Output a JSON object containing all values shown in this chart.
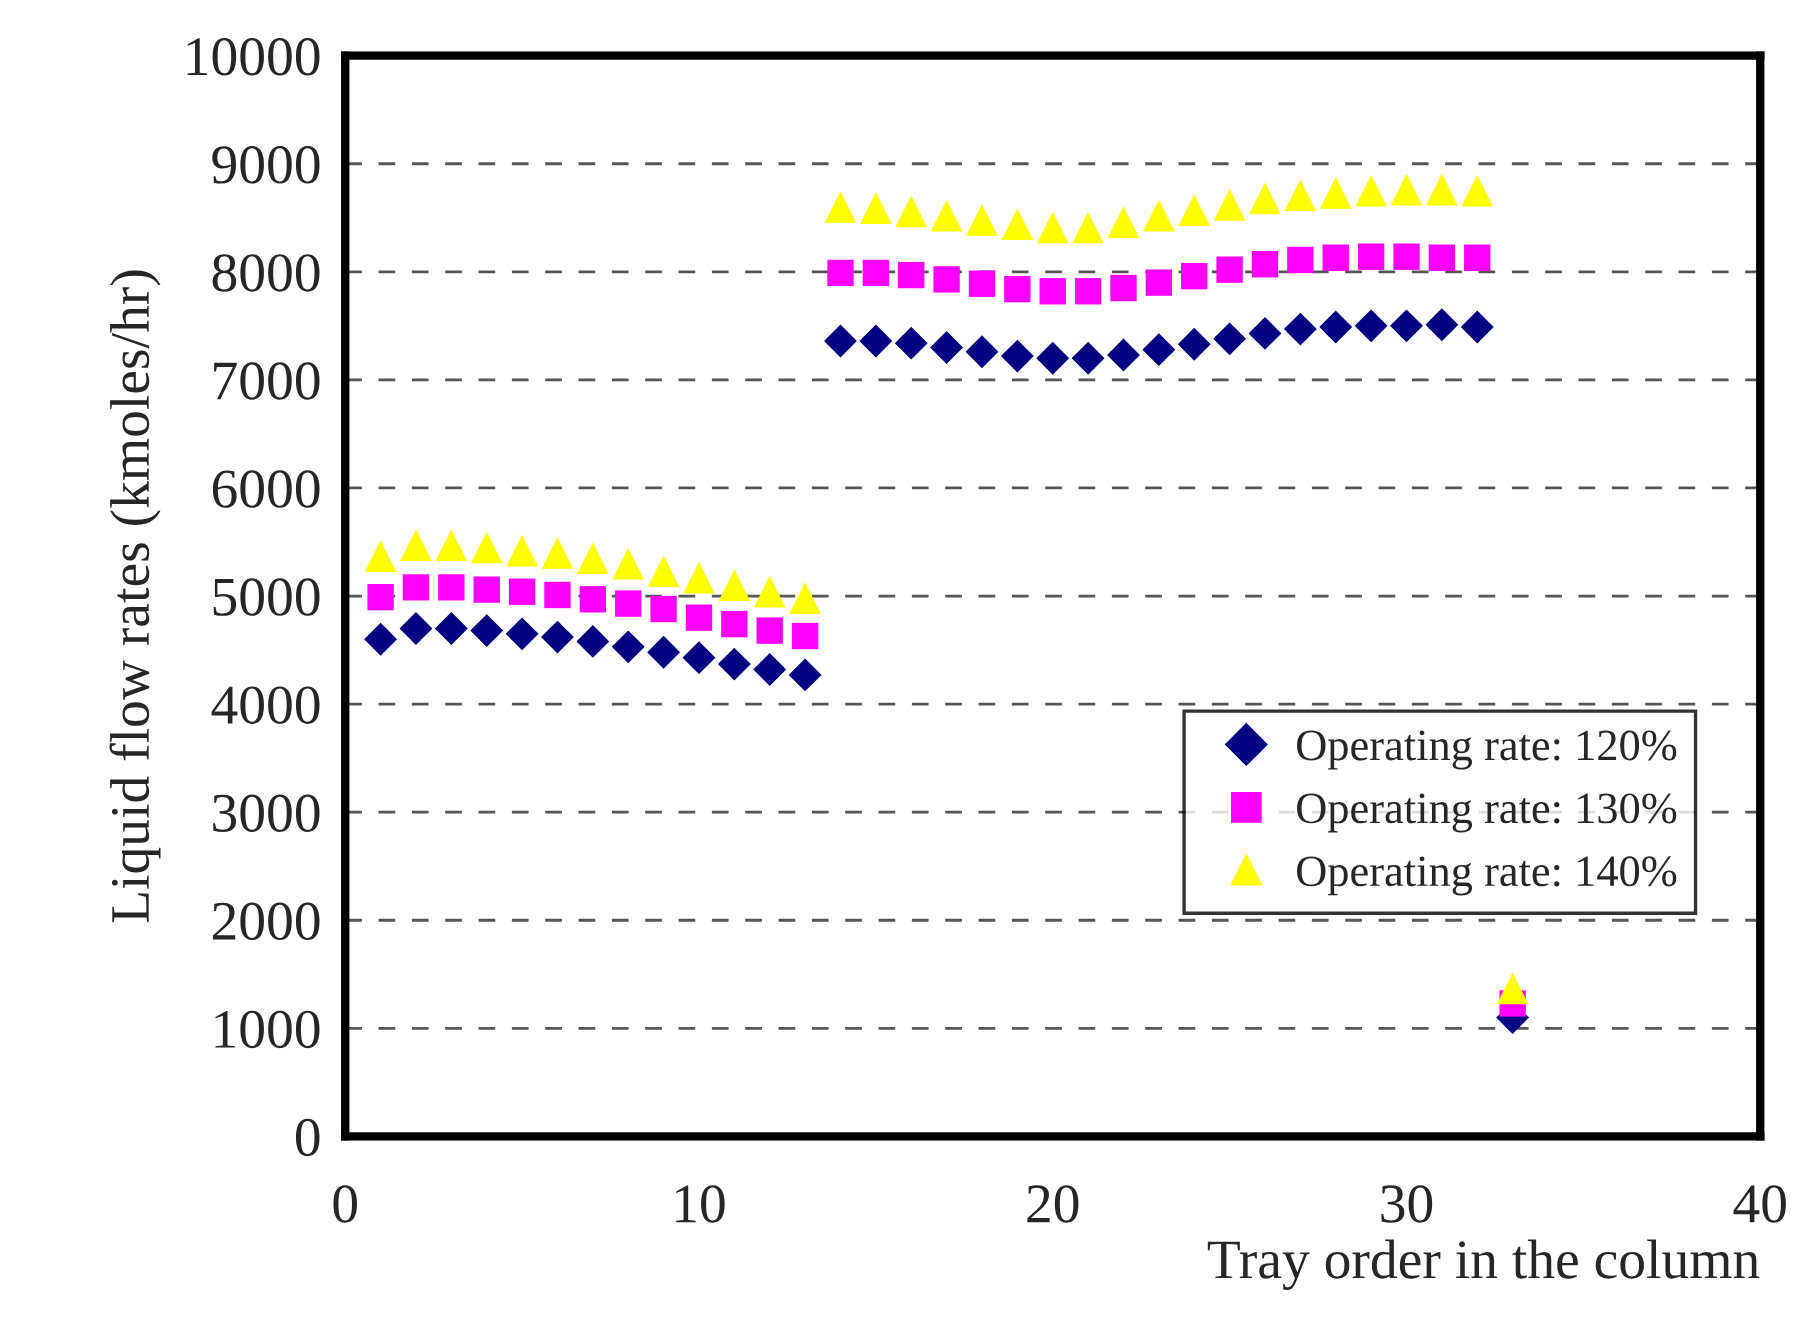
{
  "chart_data": {
    "type": "scatter",
    "xlabel": "Tray order in the column",
    "ylabel": "Liquid flow rates (kmoles/hr)",
    "x": [
      1,
      2,
      3,
      4,
      5,
      6,
      7,
      8,
      9,
      10,
      11,
      12,
      13,
      14,
      15,
      16,
      17,
      18,
      19,
      20,
      21,
      22,
      23,
      24,
      25,
      26,
      27,
      28,
      29,
      30,
      31,
      32,
      33
    ],
    "series": [
      {
        "name": "Operating rate: 120%",
        "color": "#000080",
        "marker": "diamond",
        "values": [
          4600,
          4700,
          4700,
          4680,
          4650,
          4620,
          4580,
          4530,
          4480,
          4430,
          4370,
          4320,
          4270,
          7360,
          7360,
          7340,
          7300,
          7260,
          7220,
          7200,
          7200,
          7230,
          7280,
          7330,
          7380,
          7430,
          7470,
          7490,
          7500,
          7500,
          7510,
          7490,
          1100
        ]
      },
      {
        "name": "Operating rate: 130%",
        "color": "#ff00ff",
        "marker": "square",
        "values": [
          4990,
          5080,
          5080,
          5060,
          5040,
          5010,
          4970,
          4930,
          4880,
          4800,
          4740,
          4680,
          4630,
          7990,
          7990,
          7970,
          7930,
          7890,
          7840,
          7820,
          7820,
          7850,
          7900,
          7960,
          8020,
          8070,
          8110,
          8130,
          8140,
          8140,
          8130,
          8130,
          1230
        ]
      },
      {
        "name": "Operating rate: 140%",
        "color": "#ffff00",
        "marker": "triangle",
        "values": [
          5370,
          5470,
          5470,
          5450,
          5420,
          5400,
          5350,
          5300,
          5230,
          5170,
          5100,
          5040,
          4980,
          8600,
          8590,
          8560,
          8520,
          8480,
          8440,
          8410,
          8410,
          8460,
          8520,
          8570,
          8620,
          8680,
          8710,
          8730,
          8750,
          8760,
          8760,
          8750,
          1370
        ]
      }
    ],
    "xlim": [
      0,
      40
    ],
    "xticks": [
      0,
      10,
      20,
      30,
      40
    ],
    "ylim": [
      0,
      10000
    ],
    "yticks": [
      0,
      1000,
      2000,
      3000,
      4000,
      5000,
      6000,
      7000,
      8000,
      9000,
      10000
    ],
    "grid": "y",
    "legend": "center right"
  }
}
